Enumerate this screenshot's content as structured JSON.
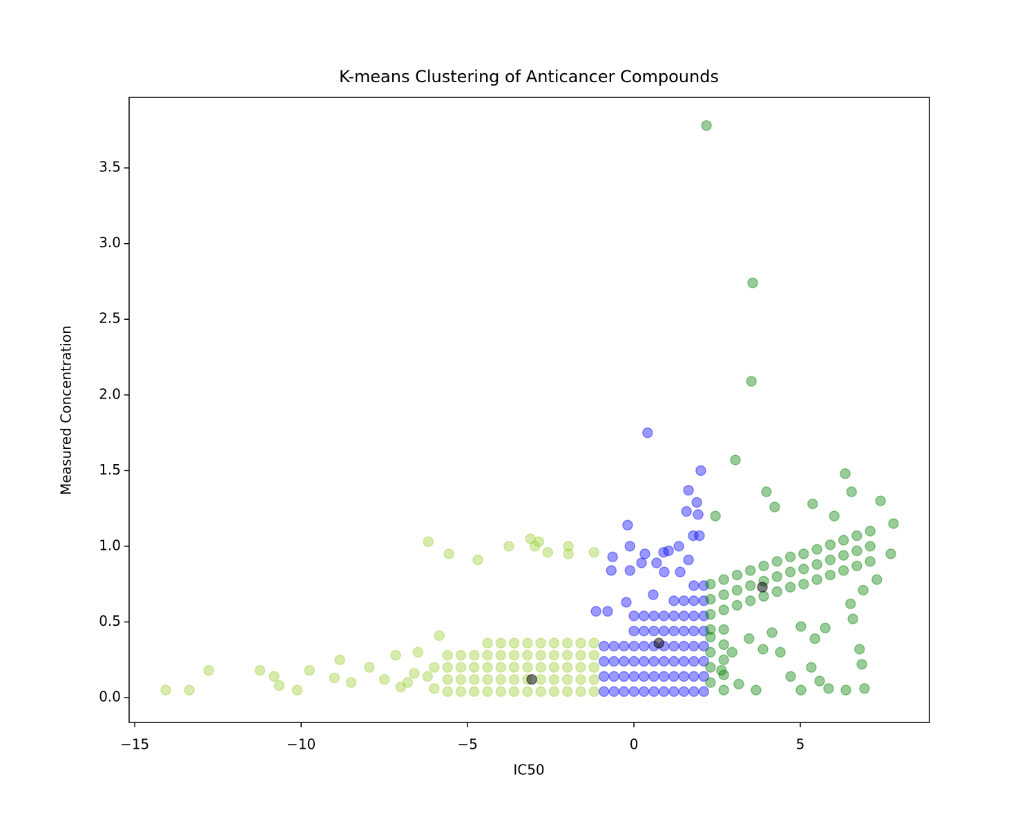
{
  "chart_data": {
    "type": "scatter",
    "title": "K-means Clustering of Anticancer Compounds",
    "x_label": "IC50",
    "y_label": "Measured Concentration",
    "xlim": [
      -15.17,
      8.88
    ],
    "ylim": [
      -0.164,
      3.966
    ],
    "xticks": [
      {
        "value": -15,
        "label": "−15"
      },
      {
        "value": -10,
        "label": "−10"
      },
      {
        "value": -5,
        "label": "−5"
      },
      0,
      5
    ],
    "yticks": [
      {
        "value": 0,
        "label": "0.0"
      },
      0.5,
      {
        "value": 1,
        "label": "1.0"
      },
      1.5,
      {
        "value": 2,
        "label": "2.0"
      },
      2.5,
      {
        "value": 3,
        "label": "3.0"
      },
      3.5
    ],
    "series": [
      {
        "color": "#9acd32",
        "opacity": 0.4,
        "x": [
          -14.07,
          -13.36,
          -12.78,
          -11.24,
          -10.81,
          -10.66,
          -10.12,
          -9.75,
          -8.84,
          -7.95,
          -7.16,
          -6.18,
          -5.56,
          -4.69,
          -3.76,
          -3.11,
          -2.86,
          -2.98,
          -2.59,
          -1.97,
          -1.97,
          -1.2,
          -5.85,
          -6.49,
          -6.6,
          -7.01,
          -8.5,
          -9.0,
          -7.5,
          -6.8,
          -6.2,
          -6.0,
          -6.0,
          -5.6,
          -5.6,
          -5.6,
          -5.6,
          -5.2,
          -5.2,
          -5.2,
          -5.2,
          -4.8,
          -4.8,
          -4.8,
          -4.8,
          -4.4,
          -4.4,
          -4.4,
          -4.4,
          -4.4,
          -4.0,
          -4.0,
          -4.0,
          -4.0,
          -4.0,
          -3.6,
          -3.6,
          -3.6,
          -3.6,
          -3.6,
          -3.2,
          -3.2,
          -3.2,
          -3.2,
          -3.2,
          -2.8,
          -2.8,
          -2.8,
          -2.8,
          -2.8,
          -2.4,
          -2.4,
          -2.4,
          -2.4,
          -2.4,
          -2.0,
          -2.0,
          -2.0,
          -2.0,
          -2.0,
          -1.6,
          -1.6,
          -1.6,
          -1.6,
          -1.6,
          -1.2,
          -1.2,
          -1.2,
          -1.2,
          -1.2
        ],
        "values": [
          0.05,
          0.05,
          0.18,
          0.18,
          0.14,
          0.08,
          0.05,
          0.18,
          0.25,
          0.2,
          0.28,
          1.03,
          0.95,
          0.91,
          1.0,
          1.05,
          1.03,
          1.0,
          0.96,
          1.0,
          0.95,
          0.96,
          0.41,
          0.3,
          0.16,
          0.07,
          0.1,
          0.13,
          0.12,
          0.1,
          0.14,
          0.2,
          0.06,
          0.04,
          0.12,
          0.2,
          0.28,
          0.04,
          0.12,
          0.2,
          0.28,
          0.04,
          0.12,
          0.2,
          0.28,
          0.04,
          0.12,
          0.2,
          0.28,
          0.36,
          0.04,
          0.12,
          0.2,
          0.28,
          0.36,
          0.04,
          0.12,
          0.2,
          0.28,
          0.36,
          0.04,
          0.12,
          0.2,
          0.28,
          0.36,
          0.04,
          0.12,
          0.2,
          0.28,
          0.36,
          0.04,
          0.12,
          0.2,
          0.28,
          0.36,
          0.04,
          0.12,
          0.2,
          0.28,
          0.36,
          0.04,
          0.12,
          0.2,
          0.28,
          0.36,
          0.04,
          0.12,
          0.2,
          0.28,
          0.36
        ]
      },
      {
        "color": "#0000ff",
        "opacity": 0.4,
        "x": [
          0.41,
          2.01,
          1.64,
          1.89,
          1.58,
          1.93,
          -0.19,
          1.78,
          1.97,
          -0.12,
          0.33,
          0.89,
          1.04,
          1.35,
          -0.64,
          -0.68,
          -0.12,
          0.23,
          0.68,
          0.91,
          1.39,
          1.64,
          -0.79,
          -1.14,
          -0.23,
          0.58,
          -0.9,
          -0.9,
          -0.9,
          -0.9,
          -0.6,
          -0.6,
          -0.6,
          -0.6,
          -0.3,
          -0.3,
          -0.3,
          -0.3,
          0,
          0,
          0,
          0,
          0,
          0,
          0.3,
          0.3,
          0.3,
          0.3,
          0.3,
          0.3,
          0.6,
          0.6,
          0.6,
          0.6,
          0.6,
          0.6,
          0.9,
          0.9,
          0.9,
          0.9,
          0.9,
          0.9,
          1.2,
          1.2,
          1.2,
          1.2,
          1.2,
          1.2,
          1.2,
          1.5,
          1.5,
          1.5,
          1.5,
          1.5,
          1.5,
          1.5,
          1.8,
          1.8,
          1.8,
          1.8,
          1.8,
          1.8,
          1.8,
          1.8,
          2.1,
          2.1,
          2.1,
          2.1,
          2.1,
          2.1,
          2.1,
          2.1
        ],
        "values": [
          1.75,
          1.5,
          1.37,
          1.29,
          1.23,
          1.21,
          1.14,
          1.07,
          1.07,
          1.0,
          0.95,
          0.96,
          0.97,
          1.0,
          0.93,
          0.84,
          0.84,
          0.89,
          0.89,
          0.83,
          0.83,
          0.91,
          0.57,
          0.57,
          0.63,
          0.68,
          0.04,
          0.14,
          0.24,
          0.34,
          0.04,
          0.14,
          0.24,
          0.34,
          0.04,
          0.14,
          0.24,
          0.34,
          0.04,
          0.14,
          0.24,
          0.34,
          0.44,
          0.54,
          0.04,
          0.14,
          0.24,
          0.34,
          0.44,
          0.54,
          0.04,
          0.14,
          0.24,
          0.34,
          0.44,
          0.54,
          0.04,
          0.14,
          0.24,
          0.34,
          0.44,
          0.54,
          0.04,
          0.14,
          0.24,
          0.34,
          0.44,
          0.54,
          0.64,
          0.04,
          0.14,
          0.24,
          0.34,
          0.44,
          0.54,
          0.64,
          0.04,
          0.14,
          0.24,
          0.34,
          0.44,
          0.54,
          0.64,
          0.74,
          0.04,
          0.14,
          0.24,
          0.34,
          0.44,
          0.54,
          0.64,
          0.74
        ]
      },
      {
        "color": "#008000",
        "opacity": 0.4,
        "x": [
          2.18,
          3.57,
          3.53,
          3.05,
          6.35,
          6.54,
          3.98,
          4.23,
          2.45,
          5.37,
          7.41,
          6.02,
          7.8,
          7.72,
          7.3,
          6.89,
          6.51,
          6.58,
          6.78,
          6.85,
          6.37,
          6.93,
          5.85,
          5.58,
          5.33,
          5.02,
          5.75,
          5.44,
          5.02,
          4.15,
          4.4,
          3.88,
          3.46,
          2.95,
          2.63,
          3.15,
          3.67,
          4.71,
          2.3,
          2.3,
          2.3,
          2.3,
          2.3,
          2.3,
          2.3,
          2.3,
          2.7,
          2.7,
          2.7,
          2.7,
          2.7,
          2.7,
          2.7,
          2.7,
          3.1,
          3.1,
          3.1,
          3.5,
          3.5,
          3.5,
          3.9,
          3.9,
          3.9,
          4.3,
          4.3,
          4.3,
          4.7,
          4.7,
          4.7,
          5.1,
          5.1,
          5.1,
          5.5,
          5.5,
          5.5,
          5.9,
          5.9,
          5.9,
          6.3,
          6.3,
          6.3,
          6.7,
          6.7,
          6.7,
          7.1,
          7.1,
          7.1
        ],
        "values": [
          3.78,
          2.74,
          2.09,
          1.57,
          1.48,
          1.36,
          1.36,
          1.26,
          1.2,
          1.28,
          1.3,
          1.2,
          1.15,
          0.95,
          0.78,
          0.71,
          0.62,
          0.52,
          0.32,
          0.22,
          0.05,
          0.06,
          0.06,
          0.11,
          0.2,
          0.05,
          0.46,
          0.39,
          0.47,
          0.43,
          0.3,
          0.32,
          0.39,
          0.3,
          0.18,
          0.09,
          0.05,
          0.14,
          0.55,
          0.65,
          0.75,
          0.1,
          0.2,
          0.3,
          0.4,
          0.45,
          0.58,
          0.68,
          0.78,
          0.05,
          0.15,
          0.25,
          0.35,
          0.45,
          0.61,
          0.71,
          0.81,
          0.64,
          0.74,
          0.84,
          0.67,
          0.77,
          0.87,
          0.7,
          0.8,
          0.9,
          0.73,
          0.83,
          0.93,
          0.75,
          0.85,
          0.95,
          0.78,
          0.88,
          0.98,
          0.81,
          0.91,
          1.01,
          0.84,
          0.94,
          1.04,
          0.87,
          0.97,
          1.07,
          0.9,
          1.0,
          1.1
        ]
      },
      {
        "color": "#000000",
        "opacity": 0.5,
        "x": [
          -3.07,
          0.75,
          3.86
        ],
        "values": [
          0.12,
          0.36,
          0.73
        ]
      }
    ]
  }
}
